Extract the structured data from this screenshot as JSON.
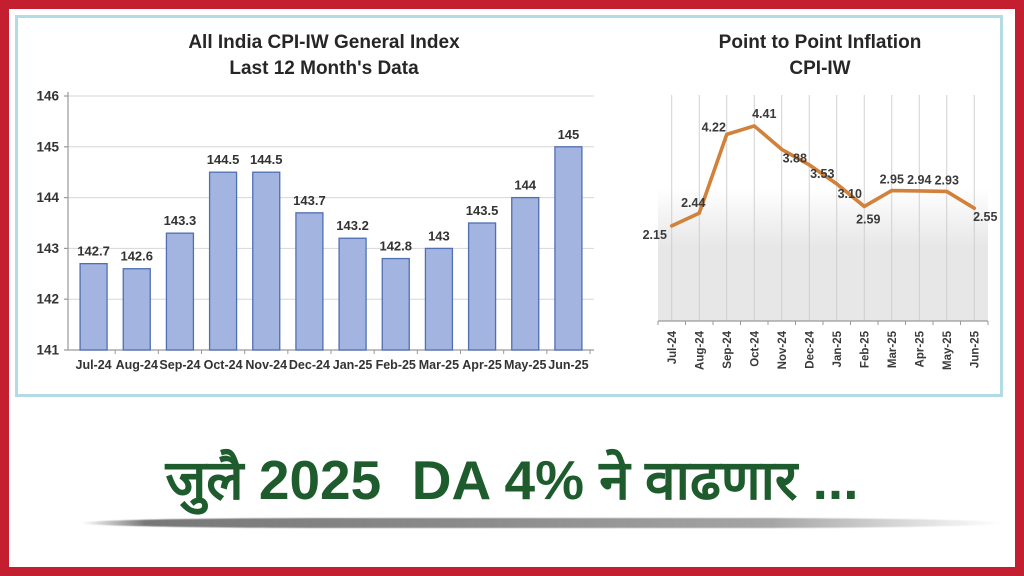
{
  "page": {
    "heading": {
      "text": "जुलै 2025  DA 4% ने वाढणार ...",
      "color": "#1e5c2e"
    },
    "frame": {
      "outer_border_color": "#c41f30",
      "inner_border_color": "#b2dbe6"
    }
  },
  "chart_data": [
    {
      "type": "bar",
      "title": "All India CPI-IW General Index",
      "subtitle": "Last 12 Month's Data",
      "categories": [
        "Jul-24",
        "Aug-24",
        "Sep-24",
        "Oct-24",
        "Nov-24",
        "Dec-24",
        "Jan-25",
        "Feb-25",
        "Mar-25",
        "Apr-25",
        "May-25",
        "Jun-25"
      ],
      "values": [
        142.7,
        142.6,
        143.3,
        144.5,
        144.5,
        143.7,
        143.2,
        142.8,
        143,
        143.5,
        144,
        145
      ],
      "data_labels": [
        "142.7",
        "142.6",
        "143.3",
        "144.5",
        "144.5",
        "143.7",
        "143.2",
        "142.8",
        "143",
        "143.5",
        "144",
        "145"
      ],
      "ylabel": "",
      "xlabel": "",
      "ylim": [
        141,
        146
      ],
      "yticks": [
        141,
        142,
        143,
        144,
        145,
        146
      ],
      "grid": "horizontal",
      "legend_position": "none",
      "bar_fill": "#a3b4e0",
      "bar_stroke": "#4f6fb2",
      "gridline_color": "#d6d6d6",
      "axis_color": "#9a9a9a",
      "label_color": "#333333"
    },
    {
      "type": "line",
      "title": "Point to Point Inflation",
      "subtitle": "CPI-IW",
      "categories": [
        "Jul-24",
        "Aug-24",
        "Sep-24",
        "Oct-24",
        "Nov-24",
        "Dec-24",
        "Jan-25",
        "Feb-25",
        "Mar-25",
        "Apr-25",
        "May-25",
        "Jun-25"
      ],
      "values": [
        2.15,
        2.44,
        4.22,
        4.41,
        3.88,
        3.53,
        3.1,
        2.59,
        2.95,
        2.94,
        2.93,
        2.55
      ],
      "data_labels": [
        "2.15",
        "2.44",
        "4.22",
        "4.41",
        "3.88",
        "3.53",
        "3.10",
        "2.59",
        "2.95",
        "2.94",
        "2.93",
        "2.55"
      ],
      "ylabel": "",
      "xlabel": "",
      "ylim": [
        0,
        5.2
      ],
      "grid": "vertical",
      "legend_position": "none",
      "line_color": "#d2813a",
      "plot_bg_top": "#ffffff",
      "plot_bg_bottom": "#e7e7e7",
      "gridline_color": "#cccccc",
      "axis_color": "#9a9a9a",
      "label_color": "#333333"
    }
  ]
}
